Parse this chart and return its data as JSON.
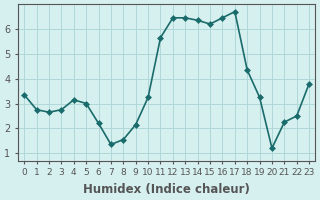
{
  "x": [
    0,
    1,
    2,
    3,
    4,
    5,
    6,
    7,
    8,
    9,
    10,
    11,
    12,
    13,
    14,
    15,
    16,
    17,
    18,
    19,
    20,
    21,
    22,
    23
  ],
  "y": [
    3.35,
    2.75,
    2.65,
    2.75,
    3.15,
    3.0,
    2.2,
    1.35,
    1.55,
    2.15,
    3.25,
    5.65,
    6.45,
    6.45,
    6.35,
    6.2,
    6.45,
    6.7,
    4.35,
    3.25,
    1.2,
    2.25,
    2.5,
    3.8
  ],
  "line_color": "#1a6b6b",
  "marker": "D",
  "markersize": 3,
  "linewidth": 1.2,
  "bg_color": "#d6f0ef",
  "grid_color": "#b0d8d8",
  "xlabel": "Humidex (Indice chaleur)",
  "xlabel_fontsize": 8.5,
  "xlim": [
    -0.5,
    23.5
  ],
  "ylim": [
    0.7,
    7.0
  ],
  "yticks": [
    1,
    2,
    3,
    4,
    5,
    6
  ],
  "xtick_labels": [
    "0",
    "1",
    "2",
    "3",
    "4",
    "5",
    "6",
    "7",
    "8",
    "9",
    "10",
    "11",
    "12",
    "13",
    "14",
    "15",
    "16",
    "17",
    "18",
    "19",
    "20",
    "21",
    "22",
    "23"
  ],
  "tick_fontsize": 7,
  "axis_color": "#555555"
}
